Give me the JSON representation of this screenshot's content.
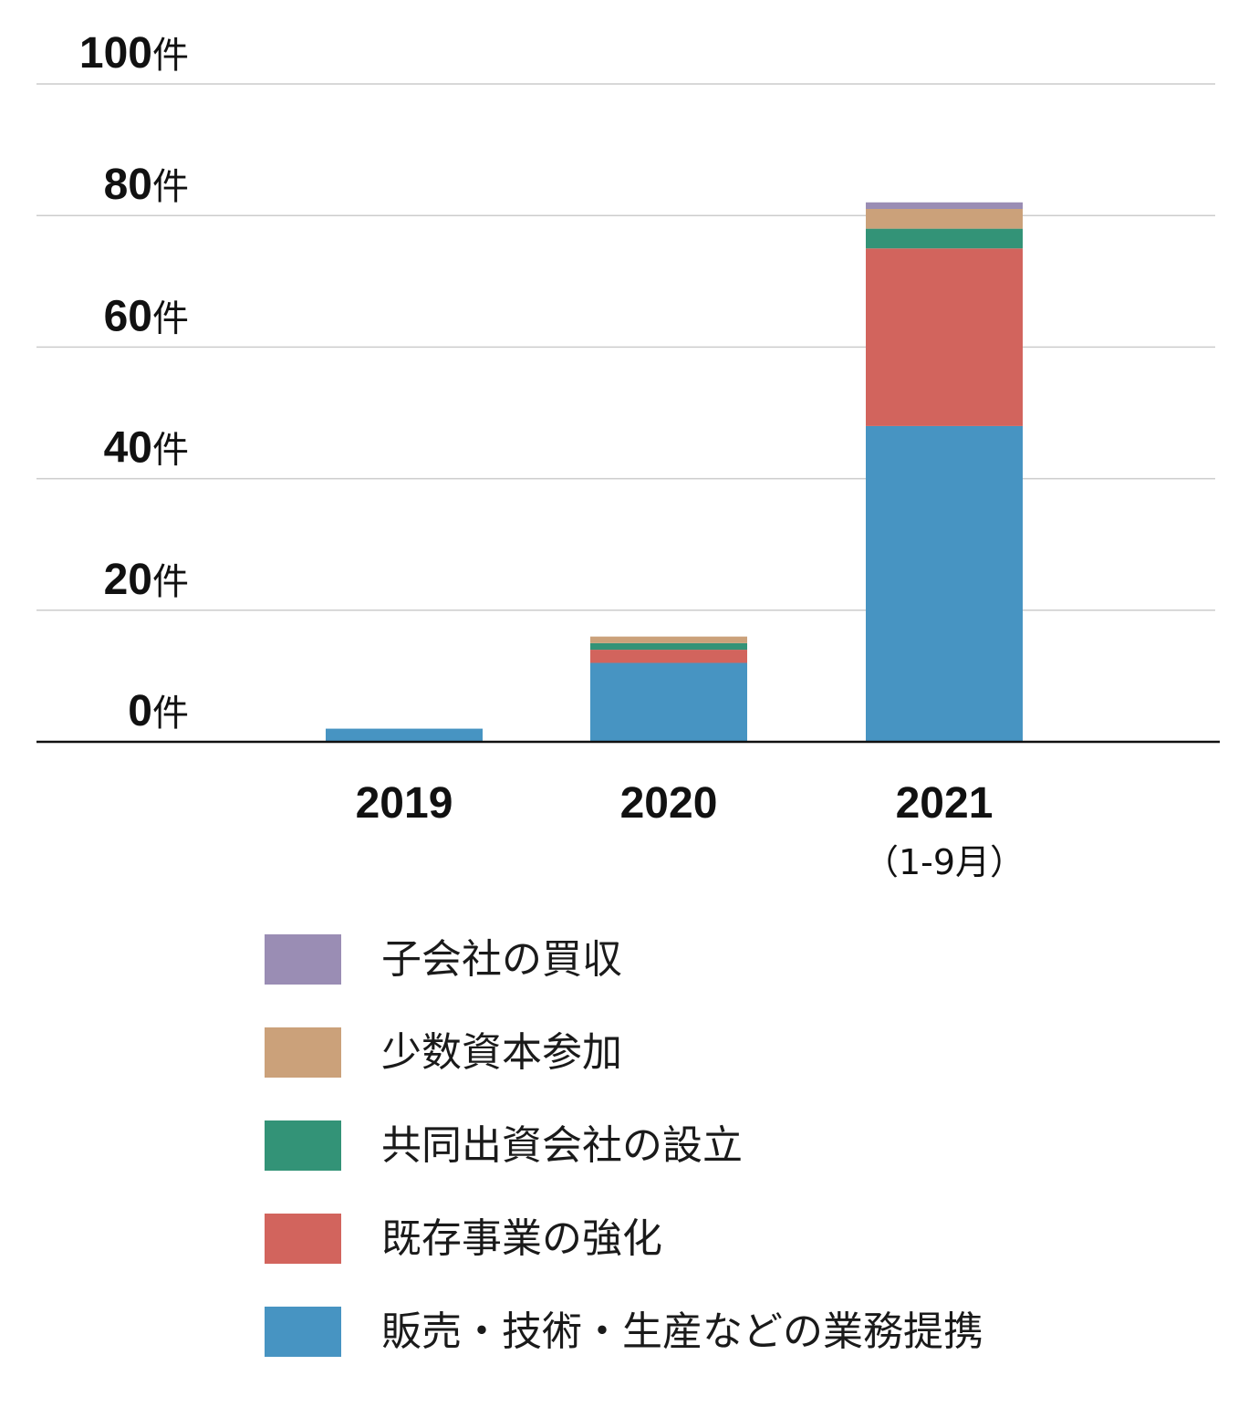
{
  "chart_data": {
    "type": "bar",
    "stacked": true,
    "categories": [
      "2019",
      "2020",
      "2021"
    ],
    "category_sublabels": [
      "",
      "",
      "（1-9月）"
    ],
    "y_unit": "件",
    "ylim": [
      0,
      100
    ],
    "y_ticks": [
      0,
      20,
      40,
      60,
      80,
      100
    ],
    "grid": true,
    "legend_position": "bottom",
    "series": [
      {
        "name": "販売・技術・生産などの業務提携",
        "color": "#4794c2",
        "values": [
          2,
          12,
          48
        ]
      },
      {
        "name": "既存事業の強化",
        "color": "#d2645d",
        "values": [
          0,
          2,
          27
        ]
      },
      {
        "name": "共同出資会社の設立",
        "color": "#339377",
        "values": [
          0,
          1,
          3
        ]
      },
      {
        "name": "少数資本参加",
        "color": "#cba17a",
        "values": [
          0,
          1,
          3
        ]
      },
      {
        "name": "子会社の買収",
        "color": "#9a8db4",
        "values": [
          0,
          0,
          1
        ]
      }
    ]
  },
  "legend": {
    "items": [
      {
        "label": "子会社の買収",
        "color": "#9a8db4"
      },
      {
        "label": "少数資本参加",
        "color": "#cba17a"
      },
      {
        "label": "共同出資会社の設立",
        "color": "#339377"
      },
      {
        "label": "既存事業の強化",
        "color": "#d2645d"
      },
      {
        "label": "販売・技術・生産などの業務提携",
        "color": "#4794c2"
      }
    ]
  }
}
